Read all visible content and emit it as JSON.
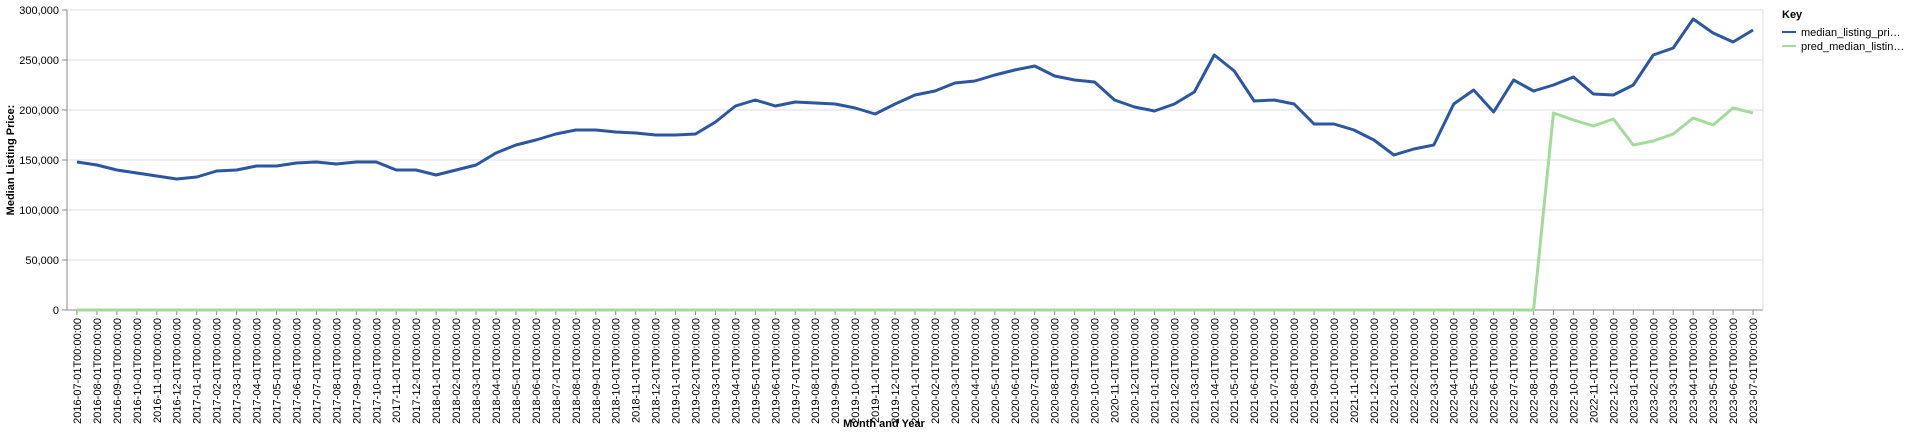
{
  "chart_data": {
    "type": "line",
    "x_label": "Month and Year",
    "y_label": "Median Listing Price:",
    "legend_title": "Key",
    "legend_position": "right",
    "grid": true,
    "categories": [
      "2016-07-01T00:00:00",
      "2016-08-01T00:00:00",
      "2016-09-01T00:00:00",
      "2016-10-01T00:00:00",
      "2016-11-01T00:00:00",
      "2016-12-01T00:00:00",
      "2017-01-01T00:00:00",
      "2017-02-01T00:00:00",
      "2017-03-01T00:00:00",
      "2017-04-01T00:00:00",
      "2017-05-01T00:00:00",
      "2017-06-01T00:00:00",
      "2017-07-01T00:00:00",
      "2017-08-01T00:00:00",
      "2017-09-01T00:00:00",
      "2017-10-01T00:00:00",
      "2017-11-01T00:00:00",
      "2017-12-01T00:00:00",
      "2018-01-01T00:00:00",
      "2018-02-01T00:00:00",
      "2018-03-01T00:00:00",
      "2018-04-01T00:00:00",
      "2018-05-01T00:00:00",
      "2018-06-01T00:00:00",
      "2018-07-01T00:00:00",
      "2018-08-01T00:00:00",
      "2018-09-01T00:00:00",
      "2018-10-01T00:00:00",
      "2018-11-01T00:00:00",
      "2018-12-01T00:00:00",
      "2019-01-01T00:00:00",
      "2019-02-01T00:00:00",
      "2019-03-01T00:00:00",
      "2019-04-01T00:00:00",
      "2019-05-01T00:00:00",
      "2019-06-01T00:00:00",
      "2019-07-01T00:00:00",
      "2019-08-01T00:00:00",
      "2019-09-01T00:00:00",
      "2019-10-01T00:00:00",
      "2019-11-01T00:00:00",
      "2019-12-01T00:00:00",
      "2020-01-01T00:00:00",
      "2020-02-01T00:00:00",
      "2020-03-01T00:00:00",
      "2020-04-01T00:00:00",
      "2020-05-01T00:00:00",
      "2020-06-01T00:00:00",
      "2020-07-01T00:00:00",
      "2020-08-01T00:00:00",
      "2020-09-01T00:00:00",
      "2020-10-01T00:00:00",
      "2020-11-01T00:00:00",
      "2020-12-01T00:00:00",
      "2021-01-01T00:00:00",
      "2021-02-01T00:00:00",
      "2021-03-01T00:00:00",
      "2021-04-01T00:00:00",
      "2021-05-01T00:00:00",
      "2021-06-01T00:00:00",
      "2021-07-01T00:00:00",
      "2021-08-01T00:00:00",
      "2021-09-01T00:00:00",
      "2021-10-01T00:00:00",
      "2021-11-01T00:00:00",
      "2021-12-01T00:00:00",
      "2022-01-01T00:00:00",
      "2022-02-01T00:00:00",
      "2022-03-01T00:00:00",
      "2022-04-01T00:00:00",
      "2022-05-01T00:00:00",
      "2022-06-01T00:00:00",
      "2022-07-01T00:00:00",
      "2022-08-01T00:00:00",
      "2022-09-01T00:00:00",
      "2022-10-01T00:00:00",
      "2022-11-01T00:00:00",
      "2022-12-01T00:00:00",
      "2023-01-01T00:00:00",
      "2023-02-01T00:00:00",
      "2023-03-01T00:00:00",
      "2023-04-01T00:00:00",
      "2023-05-01T00:00:00",
      "2023-06-01T00:00:00",
      "2023-07-01T00:00:00"
    ],
    "series": [
      {
        "name": "median_listing_pri…",
        "color": "#2c57a0",
        "values": [
          148000,
          145000,
          140000,
          137000,
          134000,
          131000,
          133000,
          139000,
          140000,
          144000,
          144000,
          147000,
          148000,
          146000,
          148000,
          148000,
          140000,
          140000,
          135000,
          140000,
          145000,
          157000,
          165000,
          170000,
          176000,
          180000,
          180000,
          178000,
          177000,
          175000,
          175000,
          176000,
          188000,
          204000,
          210000,
          204000,
          208000,
          207000,
          206000,
          202000,
          196000,
          206000,
          215000,
          219000,
          227000,
          229000,
          235000,
          240000,
          244000,
          234000,
          230000,
          228000,
          210000,
          203000,
          199000,
          206000,
          218000,
          255000,
          239000,
          209000,
          210000,
          206000,
          186000,
          186000,
          180000,
          170000,
          155000,
          161000,
          165000,
          206000,
          220000,
          198000,
          230000,
          219000,
          225000,
          233000,
          216000,
          215000,
          225000,
          255000,
          262000,
          291000,
          277000,
          268000,
          280000
        ]
      },
      {
        "name": "pred_median_listin…",
        "color": "#a3dc9a",
        "values": [
          0,
          0,
          0,
          0,
          0,
          0,
          0,
          0,
          0,
          0,
          0,
          0,
          0,
          0,
          0,
          0,
          0,
          0,
          0,
          0,
          0,
          0,
          0,
          0,
          0,
          0,
          0,
          0,
          0,
          0,
          0,
          0,
          0,
          0,
          0,
          0,
          0,
          0,
          0,
          0,
          0,
          0,
          0,
          0,
          0,
          0,
          0,
          0,
          0,
          0,
          0,
          0,
          0,
          0,
          0,
          0,
          0,
          0,
          0,
          0,
          0,
          0,
          0,
          0,
          0,
          0,
          0,
          0,
          0,
          0,
          0,
          0,
          0,
          0,
          197000,
          190000,
          184000,
          191000,
          165000,
          169000,
          176000,
          192000,
          185000,
          202000,
          197000
        ]
      }
    ],
    "ylim": [
      0,
      300000
    ],
    "yticks": [
      0,
      {
        "value": 50000,
        "label": "50,000"
      },
      {
        "value": 100000,
        "label": "100,000"
      },
      {
        "value": 150000,
        "label": "150,000"
      },
      {
        "value": 200000,
        "label": "200,000"
      },
      {
        "value": 250000,
        "label": "250,000"
      },
      {
        "value": 300000,
        "label": "300,000"
      }
    ]
  }
}
